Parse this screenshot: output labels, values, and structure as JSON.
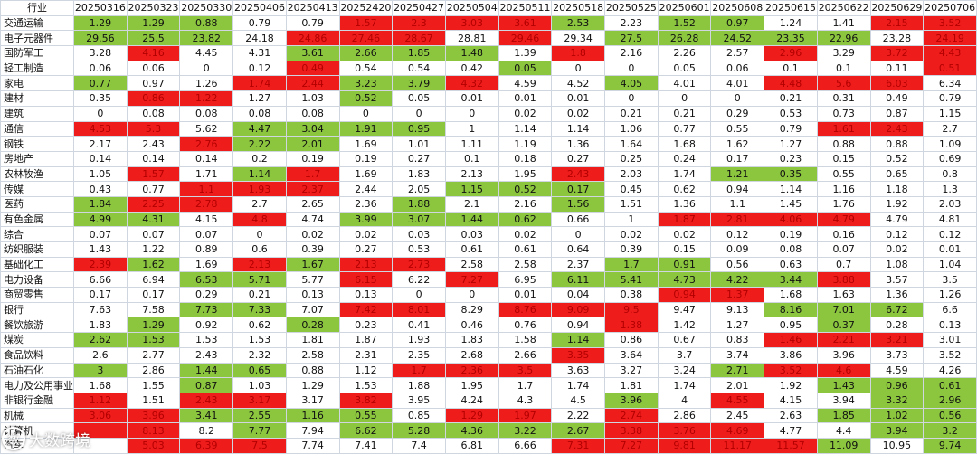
{
  "table": {
    "columns": [
      "行业",
      "20250316",
      "20250323",
      "20250330",
      "20250406",
      "20250413",
      "20252420",
      "20250427",
      "20250504",
      "20250511",
      "20250518",
      "20250525",
      "20250601",
      "20250608",
      "20250615",
      "20250622",
      "20250629",
      "20250706"
    ],
    "rows": [
      {
        "name": "交通运输",
        "values": [
          "1.29",
          "1.29",
          "0.88",
          "0.79",
          "0.79",
          "1.57",
          "2.3",
          "3.03",
          "3.61",
          "2.53",
          "2.23",
          "1.52",
          "0.97",
          "1.24",
          "1.41",
          "2.15",
          "3.52"
        ],
        "colors": [
          "g",
          "g",
          "g",
          "",
          "",
          "r",
          "r",
          "r",
          "r",
          "g",
          "",
          "g",
          "g",
          "",
          "",
          "r",
          "r"
        ]
      },
      {
        "name": "电子元器件",
        "values": [
          "29.56",
          "25.5",
          "23.82",
          "24.18",
          "24.86",
          "27.46",
          "28.67",
          "28.81",
          "29.46",
          "29.34",
          "27.5",
          "26.28",
          "24.52",
          "23.35",
          "22.96",
          "23.28",
          "24.19"
        ],
        "colors": [
          "g",
          "g",
          "g",
          "",
          "r",
          "r",
          "r",
          "",
          "r",
          "",
          "g",
          "g",
          "g",
          "g",
          "g",
          "",
          "r"
        ]
      },
      {
        "name": "国防军工",
        "values": [
          "3.28",
          "4.16",
          "4.45",
          "4.31",
          "3.61",
          "2.66",
          "1.85",
          "1.48",
          "1.39",
          "1.8",
          "2.16",
          "2.26",
          "2.57",
          "2.96",
          "3.29",
          "3.72",
          "4.43"
        ],
        "colors": [
          "",
          "r",
          "",
          "",
          "g",
          "g",
          "g",
          "g",
          "",
          "r",
          "",
          "",
          "",
          "r",
          "",
          "r",
          "r"
        ]
      },
      {
        "name": "轻工制造",
        "values": [
          "0.06",
          "0.06",
          "0",
          "0.12",
          "0.49",
          "0.54",
          "0.54",
          "0.42",
          "0.05",
          "0",
          "0",
          "0.05",
          "0.06",
          "0.1",
          "0.1",
          "0.11",
          "0.51"
        ],
        "colors": [
          "",
          "",
          "",
          "",
          "r",
          "",
          "",
          "",
          "g",
          "",
          "",
          "",
          "",
          "",
          "",
          "",
          "r"
        ]
      },
      {
        "name": "家电",
        "values": [
          "0.77",
          "0.97",
          "1.26",
          "1.74",
          "2.44",
          "3.23",
          "3.79",
          "4.32",
          "4.59",
          "4.52",
          "4.05",
          "4.01",
          "4.01",
          "4.48",
          "5.6",
          "6.03",
          "6.34"
        ],
        "colors": [
          "g",
          "",
          "",
          "r",
          "r",
          "g",
          "g",
          "r",
          "",
          "",
          "g",
          "",
          "",
          "r",
          "r",
          "r",
          ""
        ]
      },
      {
        "name": "建材",
        "values": [
          "0.35",
          "0.86",
          "1.22",
          "1.27",
          "1.03",
          "0.52",
          "0.05",
          "0.01",
          "0.01",
          "0.01",
          "0",
          "0",
          "0",
          "0.21",
          "0.31",
          "0.49",
          "0.79"
        ],
        "colors": [
          "",
          "r",
          "r",
          "",
          "",
          "g",
          "",
          "",
          "",
          "",
          "",
          "",
          "",
          "",
          "",
          "",
          ""
        ]
      },
      {
        "name": "建筑",
        "values": [
          "0",
          "0.08",
          "0.08",
          "0.08",
          "0.08",
          "0",
          "0",
          "0",
          "0.02",
          "0.02",
          "0.21",
          "0.21",
          "0.29",
          "0.53",
          "0.73",
          "0.87",
          "1.15"
        ],
        "colors": [
          "",
          "",
          "",
          "",
          "",
          "",
          "",
          "",
          "",
          "",
          "",
          "",
          "",
          "",
          "",
          "",
          ""
        ]
      },
      {
        "name": "通信",
        "values": [
          "4.53",
          "5.3",
          "5.62",
          "4.47",
          "3.04",
          "1.91",
          "0.95",
          "1",
          "1.14",
          "1.14",
          "1.06",
          "0.77",
          "0.55",
          "0.79",
          "1.61",
          "2.43",
          "2.7"
        ],
        "colors": [
          "r",
          "r",
          "",
          "g",
          "g",
          "g",
          "g",
          "",
          "",
          "",
          "",
          "",
          "",
          "",
          "r",
          "r",
          ""
        ]
      },
      {
        "name": "钢铁",
        "values": [
          "2.17",
          "2.43",
          "2.76",
          "2.22",
          "2.01",
          "1.69",
          "1.01",
          "1.11",
          "1.19",
          "1.36",
          "1.64",
          "1.68",
          "1.62",
          "1.27",
          "0.88",
          "0.88",
          "1.09"
        ],
        "colors": [
          "",
          "",
          "r",
          "g",
          "g",
          "",
          "",
          "",
          "",
          "",
          "",
          "",
          "",
          "",
          "",
          "",
          ""
        ]
      },
      {
        "name": "房地产",
        "values": [
          "0.14",
          "0.14",
          "0.14",
          "0.2",
          "0.19",
          "0.19",
          "0.27",
          "0.1",
          "0.18",
          "0.27",
          "0.25",
          "0.24",
          "0.17",
          "0.23",
          "0.15",
          "0.52",
          "0.69"
        ],
        "colors": [
          "",
          "",
          "",
          "",
          "",
          "",
          "",
          "",
          "",
          "",
          "",
          "",
          "",
          "",
          "",
          "",
          ""
        ]
      },
      {
        "name": "农林牧渔",
        "values": [
          "1.05",
          "1.57",
          "1.71",
          "1.14",
          "1.7",
          "1.69",
          "1.83",
          "2.13",
          "1.95",
          "2.43",
          "2.03",
          "1.74",
          "1.21",
          "0.35",
          "0.55",
          "0.65",
          "0.8"
        ],
        "colors": [
          "",
          "r",
          "",
          "g",
          "r",
          "",
          "",
          "",
          "",
          "r",
          "",
          "",
          "g",
          "g",
          "",
          "",
          ""
        ]
      },
      {
        "name": "传媒",
        "values": [
          "0.43",
          "0.77",
          "1.1",
          "1.93",
          "2.37",
          "2.44",
          "2.05",
          "1.15",
          "0.52",
          "0.17",
          "0.45",
          "0.62",
          "0.94",
          "1.14",
          "1.16",
          "1.18",
          "1.3"
        ],
        "colors": [
          "",
          "",
          "r",
          "r",
          "r",
          "",
          "",
          "g",
          "g",
          "g",
          "",
          "",
          "",
          "",
          "",
          "",
          ""
        ]
      },
      {
        "name": "医药",
        "values": [
          "1.84",
          "2.25",
          "2.78",
          "2.7",
          "2.65",
          "2.36",
          "1.88",
          "2.1",
          "2.16",
          "1.56",
          "1.51",
          "1.36",
          "1.1",
          "1.45",
          "1.76",
          "1.92",
          "2.03"
        ],
        "colors": [
          "g",
          "r",
          "r",
          "",
          "",
          "",
          "g",
          "",
          "",
          "g",
          "",
          "",
          "",
          "",
          "",
          "",
          ""
        ]
      },
      {
        "name": "有色金属",
        "values": [
          "4.99",
          "4.31",
          "4.15",
          "4.8",
          "4.74",
          "3.99",
          "3.07",
          "1.44",
          "0.62",
          "0.66",
          "1",
          "1.87",
          "2.81",
          "4.06",
          "4.79",
          "4.79",
          "4.81"
        ],
        "colors": [
          "g",
          "g",
          "",
          "r",
          "",
          "g",
          "g",
          "g",
          "g",
          "",
          "",
          "r",
          "r",
          "r",
          "r",
          "",
          ""
        ]
      },
      {
        "name": "综合",
        "values": [
          "0.07",
          "0.07",
          "0.07",
          "0",
          "0.02",
          "0.02",
          "0.03",
          "0.03",
          "0.02",
          "0",
          "0.02",
          "0.02",
          "0.12",
          "0.19",
          "0.16",
          "0.12",
          "0.12"
        ],
        "colors": [
          "",
          "",
          "",
          "",
          "",
          "",
          "",
          "",
          "",
          "",
          "",
          "",
          "",
          "",
          "",
          "",
          ""
        ]
      },
      {
        "name": "纺织服装",
        "values": [
          "1.43",
          "1.22",
          "0.89",
          "0.6",
          "0.39",
          "0.27",
          "0.53",
          "0.61",
          "0.61",
          "0.64",
          "0.39",
          "0.15",
          "0.09",
          "0.08",
          "0.07",
          "0.02",
          "0.01"
        ],
        "colors": [
          "",
          "",
          "",
          "",
          "",
          "",
          "",
          "",
          "",
          "",
          "",
          "",
          "",
          "",
          "",
          "",
          ""
        ]
      },
      {
        "name": "基础化工",
        "values": [
          "2.39",
          "1.62",
          "1.69",
          "2.13",
          "1.67",
          "2.13",
          "2.73",
          "2.58",
          "2.58",
          "2.37",
          "1.7",
          "0.91",
          "0.56",
          "0.63",
          "0.7",
          "1.08",
          "1.04"
        ],
        "colors": [
          "r",
          "g",
          "",
          "r",
          "g",
          "r",
          "r",
          "",
          "",
          "",
          "g",
          "g",
          "",
          "",
          "",
          "",
          ""
        ]
      },
      {
        "name": "电力设备",
        "values": [
          "6.66",
          "6.94",
          "6.53",
          "5.71",
          "5.77",
          "6.15",
          "6.22",
          "7.27",
          "6.95",
          "6.11",
          "5.41",
          "4.73",
          "4.22",
          "3.44",
          "3.88",
          "3.57",
          "3.5"
        ],
        "colors": [
          "",
          "",
          "g",
          "g",
          "",
          "r",
          "",
          "r",
          "",
          "g",
          "g",
          "g",
          "g",
          "g",
          "r",
          "",
          ""
        ]
      },
      {
        "name": "商贸零售",
        "values": [
          "0.17",
          "0.17",
          "0.29",
          "0.21",
          "0.13",
          "0.13",
          "0",
          "0",
          "0.01",
          "0.04",
          "0.38",
          "0.94",
          "1.37",
          "1.68",
          "1.63",
          "1.36",
          "1.26"
        ],
        "colors": [
          "",
          "",
          "",
          "",
          "",
          "",
          "",
          "",
          "",
          "",
          "",
          "r",
          "r",
          "",
          "",
          "",
          ""
        ]
      },
      {
        "name": "银行",
        "values": [
          "7.63",
          "7.58",
          "7.73",
          "7.33",
          "7.07",
          "7.42",
          "8.01",
          "8.29",
          "8.76",
          "9.09",
          "9.5",
          "9.47",
          "9.13",
          "8.16",
          "7.01",
          "6.72",
          "6.6"
        ],
        "colors": [
          "",
          "",
          "g",
          "g",
          "",
          "r",
          "r",
          "",
          "r",
          "r",
          "r",
          "",
          "",
          "g",
          "g",
          "g",
          ""
        ]
      },
      {
        "name": "餐饮旅游",
        "values": [
          "1.83",
          "1.29",
          "0.92",
          "0.62",
          "0.28",
          "0.23",
          "0.41",
          "0.46",
          "0.76",
          "0.94",
          "1.38",
          "1.42",
          "1.27",
          "0.95",
          "0.37",
          "0.28",
          "0.13"
        ],
        "colors": [
          "",
          "g",
          "",
          "",
          "g",
          "",
          "",
          "",
          "",
          "",
          "r",
          "",
          "",
          "",
          "g",
          "",
          ""
        ]
      },
      {
        "name": "煤炭",
        "values": [
          "2.62",
          "1.53",
          "1.53",
          "1.53",
          "1.81",
          "1.87",
          "1.93",
          "1.83",
          "1.58",
          "1.14",
          "0.86",
          "0.67",
          "0.83",
          "1.46",
          "2.21",
          "3.21",
          "3.01"
        ],
        "colors": [
          "g",
          "g",
          "",
          "",
          "",
          "",
          "",
          "",
          "",
          "g",
          "",
          "",
          "",
          "r",
          "r",
          "r",
          ""
        ]
      },
      {
        "name": "食品饮料",
        "values": [
          "2.6",
          "2.77",
          "2.43",
          "2.32",
          "2.58",
          "2.31",
          "2.35",
          "2.68",
          "2.66",
          "3.35",
          "3.64",
          "3.7",
          "3.74",
          "3.86",
          "3.96",
          "3.73",
          "3.52"
        ],
        "colors": [
          "",
          "",
          "",
          "",
          "",
          "",
          "",
          "",
          "",
          "r",
          "",
          "",
          "",
          "",
          "",
          "",
          ""
        ]
      },
      {
        "name": "石油石化",
        "values": [
          "3",
          "2.86",
          "1.44",
          "0.65",
          "0.88",
          "1.12",
          "1.7",
          "2.36",
          "3.5",
          "3.63",
          "3.27",
          "3.24",
          "2.71",
          "3.52",
          "4.6",
          "4.59",
          "4.26"
        ],
        "colors": [
          "g",
          "",
          "g",
          "g",
          "",
          "",
          "r",
          "r",
          "r",
          "",
          "",
          "",
          "g",
          "r",
          "r",
          "",
          ""
        ]
      },
      {
        "name": "电力及公用事业",
        "values": [
          "1.68",
          "1.55",
          "0.87",
          "1.03",
          "1.29",
          "1.53",
          "1.88",
          "1.95",
          "1.7",
          "1.74",
          "1.81",
          "1.74",
          "2.01",
          "1.92",
          "1.43",
          "0.96",
          "0.61"
        ],
        "colors": [
          "",
          "",
          "g",
          "",
          "",
          "",
          "",
          "",
          "",
          "",
          "",
          "",
          "",
          "",
          "g",
          "g",
          "g"
        ]
      },
      {
        "name": "非银行金融",
        "values": [
          "1.12",
          "1.51",
          "2.43",
          "3.17",
          "3.17",
          "3.82",
          "3.95",
          "4.24",
          "4.3",
          "4.5",
          "3.96",
          "4",
          "4.55",
          "4.15",
          "3.94",
          "3.32",
          "2.96"
        ],
        "colors": [
          "r",
          "",
          "r",
          "r",
          "",
          "r",
          "",
          "",
          "",
          "",
          "g",
          "",
          "r",
          "",
          "",
          "g",
          "g"
        ]
      },
      {
        "name": "机械",
        "values": [
          "3.06",
          "3.96",
          "3.41",
          "2.55",
          "1.16",
          "0.55",
          "0.85",
          "1.29",
          "1.97",
          "2.22",
          "2.74",
          "2.86",
          "2.45",
          "2.63",
          "1.85",
          "1.02",
          "0.56"
        ],
        "colors": [
          "r",
          "r",
          "g",
          "g",
          "g",
          "g",
          "",
          "r",
          "r",
          "",
          "r",
          "",
          "",
          "",
          "g",
          "g",
          "g"
        ]
      },
      {
        "name": "计算机",
        "values": [
          "",
          "8.13",
          "8.2",
          "7.77",
          "7.94",
          "6.62",
          "5.28",
          "4.36",
          "3.22",
          "2.67",
          "3.38",
          "3.76",
          "4.69",
          "4.77",
          "4.4",
          "3.94",
          "3.2"
        ],
        "colors": [
          "r",
          "r",
          "",
          "g",
          "",
          "g",
          "g",
          "g",
          "g",
          "g",
          "r",
          "r",
          "r",
          "",
          "",
          "g",
          "g"
        ]
      },
      {
        "name": "汽车",
        "values": [
          "",
          "5.03",
          "6.39",
          "7.5",
          "7.74",
          "7.41",
          "7.4",
          "6.81",
          "6.66",
          "7.31",
          "7.27",
          "9.81",
          "11.17",
          "11.57",
          "11.09",
          "10.95",
          "9.74"
        ],
        "colors": [
          "",
          "r",
          "r",
          "r",
          "",
          "",
          "",
          "",
          "",
          "r",
          "r",
          "r",
          "r",
          "r",
          "g",
          "",
          "g"
        ]
      }
    ]
  },
  "watermark": {
    "logo_text": "数",
    "brand": "大数跨境"
  }
}
